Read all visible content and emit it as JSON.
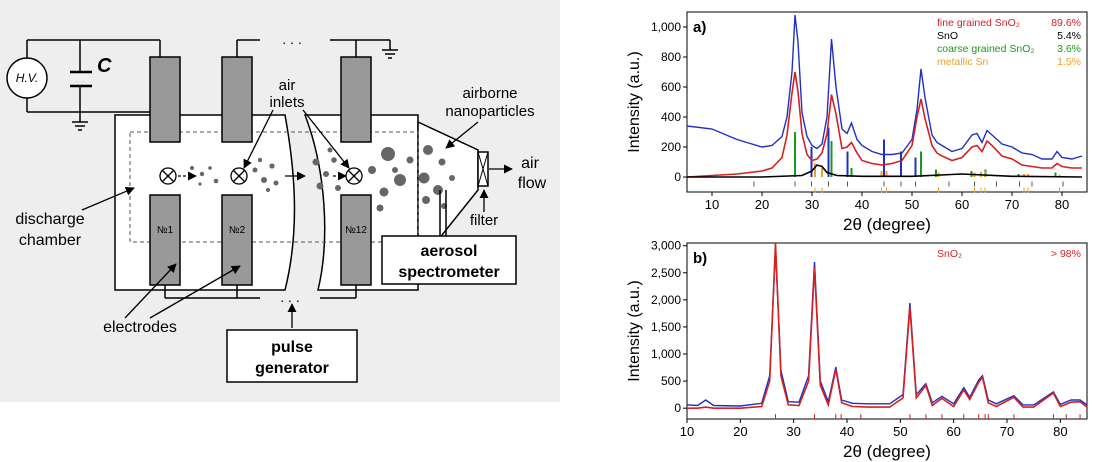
{
  "diagram": {
    "hv_label": "H.V.",
    "capacitor_label": "C",
    "air_inlets_label": [
      "air",
      "inlets"
    ],
    "airborne_label": [
      "airborne",
      "nanoparticles"
    ],
    "air_flow_label": [
      "air",
      "flow"
    ],
    "filter_label": "filter",
    "discharge_chamber_label": [
      "discharge",
      "chamber"
    ],
    "electrode_labels": [
      "№1",
      "№2",
      "№12"
    ],
    "electrodes_label": "electrodes",
    "aerosol_label": [
      "aerosol",
      "spectrometer"
    ],
    "pulse_label": [
      "pulse",
      "generator"
    ],
    "ellipsis": ". . ."
  },
  "chart_data": [
    {
      "type": "line",
      "panel_label": "a)",
      "xlabel": "2θ (degree)",
      "ylabel": "Intensity (a.u.)",
      "xlim": [
        5,
        85
      ],
      "ylim": [
        -100,
        1100
      ],
      "x_ticks": [
        10,
        20,
        30,
        40,
        50,
        60,
        70,
        80
      ],
      "y_ticks": [
        0,
        200,
        400,
        600,
        800,
        1000
      ],
      "y_tick_labels": [
        "0",
        "200",
        "400",
        "600",
        "800",
        "1,000"
      ],
      "legend_position": "top-right",
      "legend": [
        {
          "name": "fine grained SnO₂",
          "value": "89.6%",
          "color": "#d42020"
        },
        {
          "name": "SnO",
          "value": "5.4%",
          "color": "#000000"
        },
        {
          "name": "coarse grained SnO₂",
          "value": "3.6%",
          "color": "#1a9a1a"
        },
        {
          "name": "metallic Sn",
          "value": "1.5%",
          "color": "#f0a020"
        }
      ],
      "series": [
        {
          "color": "#2030c0",
          "x": [
            5,
            10,
            15,
            20,
            22,
            24,
            25,
            26,
            26.6,
            27.2,
            28,
            29,
            30,
            31,
            32,
            33,
            33.9,
            34.8,
            36,
            37,
            37.9,
            39,
            40,
            42,
            44,
            46,
            48,
            50,
            51,
            51.8,
            52.6,
            54,
            55,
            56,
            58,
            60,
            62,
            63,
            64,
            65,
            66,
            68,
            70,
            72,
            74,
            76,
            78,
            79,
            80,
            82,
            84
          ],
          "y": [
            340,
            320,
            250,
            200,
            210,
            270,
            400,
            700,
            1080,
            900,
            430,
            270,
            210,
            190,
            220,
            400,
            920,
            600,
            320,
            290,
            360,
            250,
            210,
            170,
            150,
            150,
            160,
            250,
            450,
            720,
            530,
            280,
            230,
            210,
            170,
            190,
            280,
            290,
            230,
            310,
            280,
            220,
            200,
            160,
            150,
            120,
            120,
            170,
            130,
            120,
            140
          ]
        },
        {
          "color": "#d42020",
          "x": [
            5,
            10,
            15,
            20,
            22,
            24,
            25,
            26,
            26.6,
            27.2,
            28,
            29,
            30,
            31,
            32,
            33,
            33.9,
            34.8,
            36,
            37,
            37.9,
            39,
            40,
            42,
            44,
            46,
            48,
            50,
            51,
            51.8,
            52.6,
            54,
            55,
            56,
            58,
            60,
            62,
            63,
            64,
            65,
            66,
            68,
            70,
            72,
            74,
            76,
            78,
            79,
            80,
            82,
            84
          ],
          "y": [
            0,
            10,
            20,
            40,
            60,
            130,
            280,
            560,
            700,
            570,
            290,
            150,
            110,
            120,
            160,
            290,
            550,
            420,
            190,
            200,
            230,
            160,
            110,
            90,
            80,
            90,
            110,
            210,
            400,
            520,
            390,
            210,
            160,
            140,
            110,
            130,
            200,
            210,
            170,
            240,
            210,
            140,
            120,
            80,
            70,
            60,
            60,
            90,
            70,
            60,
            60
          ]
        },
        {
          "color": "#000000",
          "x": [
            5,
            20,
            28,
            30,
            31,
            32,
            33,
            35,
            40,
            50,
            60,
            70,
            84
          ],
          "y": [
            0,
            0,
            10,
            40,
            80,
            70,
            30,
            10,
            5,
            5,
            20,
            5,
            0
          ]
        }
      ],
      "reference_peaks_green": [
        {
          "x": 26.6,
          "y": 300
        },
        {
          "x": 33.9,
          "y": 240
        },
        {
          "x": 51.8,
          "y": 170
        },
        {
          "x": 37.9,
          "y": 60
        },
        {
          "x": 54.8,
          "y": 50
        },
        {
          "x": 64.7,
          "y": 50
        },
        {
          "x": 61.9,
          "y": 40
        },
        {
          "x": 71.3,
          "y": 20
        },
        {
          "x": 78.7,
          "y": 30
        }
      ],
      "reference_peaks_orange": [
        {
          "x": 30.6,
          "y": 90
        },
        {
          "x": 32.0,
          "y": 60
        },
        {
          "x": 43.9,
          "y": 40
        },
        {
          "x": 44.9,
          "y": 40
        },
        {
          "x": 55.3,
          "y": 30
        },
        {
          "x": 62.5,
          "y": 30
        },
        {
          "x": 63.8,
          "y": 35
        },
        {
          "x": 64.6,
          "y": 40
        },
        {
          "x": 72.4,
          "y": 20
        },
        {
          "x": 73.2,
          "y": 20
        },
        {
          "x": 79.5,
          "y": 15
        }
      ],
      "reference_peaks_blue": [
        {
          "x": 29.9,
          "y": 200
        },
        {
          "x": 33.3,
          "y": 330
        },
        {
          "x": 37.1,
          "y": 170
        },
        {
          "x": 44.4,
          "y": 250
        },
        {
          "x": 47.8,
          "y": 170
        },
        {
          "x": 50.7,
          "y": 130
        }
      ]
    },
    {
      "type": "line",
      "panel_label": "b)",
      "xlabel": "2θ (degree)",
      "ylabel": "Intensity (a.u.)",
      "xlim": [
        10,
        85
      ],
      "ylim": [
        -200,
        3050
      ],
      "x_ticks": [
        10,
        20,
        30,
        40,
        50,
        60,
        70,
        80
      ],
      "y_ticks": [
        0,
        500,
        1000,
        1500,
        2000,
        2500,
        3000
      ],
      "y_tick_labels": [
        "0",
        "500",
        "1,000",
        "1,500",
        "2,000",
        "2,500",
        "3,000"
      ],
      "legend_position": "top-right",
      "legend": [
        {
          "name": "SnO₂",
          "value": "> 98%",
          "color": "#d42020"
        }
      ],
      "series": [
        {
          "color": "#2030c0",
          "x": [
            10,
            12,
            13.5,
            15,
            20,
            24,
            25.5,
            26.6,
            27.6,
            29,
            31,
            32.8,
            33.9,
            35,
            36.5,
            37.9,
            39,
            41,
            44,
            48,
            50.5,
            51.8,
            53,
            54.8,
            56,
            57.8,
            60,
            61.9,
            63,
            64.7,
            65.4,
            66.5,
            68,
            71.3,
            73,
            75,
            78.7,
            80,
            82,
            83.7,
            85
          ],
          "y": [
            60,
            50,
            150,
            50,
            40,
            90,
            600,
            2950,
            700,
            120,
            110,
            600,
            2700,
            500,
            120,
            760,
            150,
            90,
            80,
            80,
            250,
            1940,
            250,
            450,
            100,
            220,
            80,
            380,
            200,
            520,
            600,
            150,
            80,
            230,
            60,
            60,
            300,
            70,
            150,
            150,
            60
          ]
        },
        {
          "color": "#d42020",
          "x": [
            10,
            12,
            13.5,
            15,
            20,
            24,
            25.5,
            26.6,
            27.6,
            29,
            31,
            32.8,
            33.9,
            35,
            36.5,
            37.9,
            39,
            41,
            44,
            48,
            50.5,
            51.8,
            53,
            54.8,
            56,
            57.8,
            60,
            61.9,
            63,
            64.7,
            65.4,
            66.5,
            68,
            71.3,
            73,
            75,
            78.7,
            80,
            82,
            83.7,
            85
          ],
          "y": [
            0,
            0,
            20,
            0,
            0,
            30,
            500,
            3050,
            600,
            60,
            50,
            500,
            2600,
            420,
            60,
            720,
            100,
            30,
            20,
            20,
            190,
            1870,
            190,
            420,
            50,
            180,
            30,
            340,
            160,
            480,
            570,
            100,
            30,
            200,
            20,
            20,
            280,
            30,
            110,
            120,
            20
          ]
        }
      ],
      "reference_peaks_red": [
        26.6,
        33.9,
        37.9,
        38.9,
        42.6,
        51.8,
        54.8,
        57.8,
        61.9,
        64.7,
        65.9,
        66.5,
        71.3,
        78.7,
        81.1,
        83.7
      ]
    }
  ]
}
